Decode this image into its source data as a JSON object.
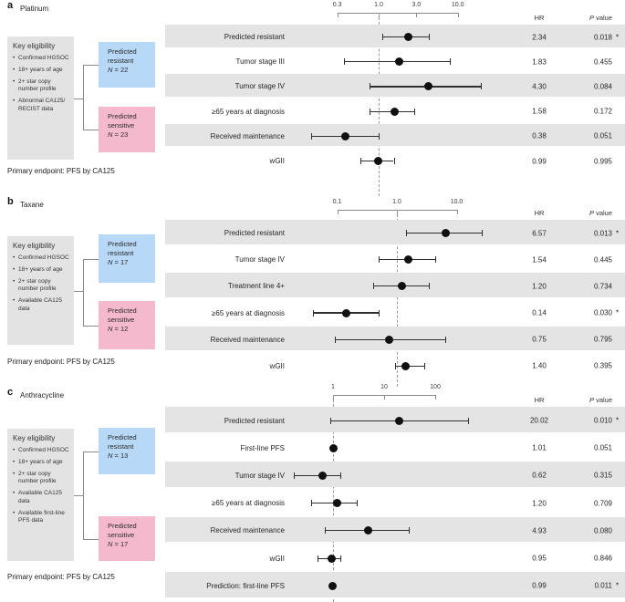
{
  "columns": {
    "hr": "HR",
    "p_italic": "P",
    "p_rest": " value"
  },
  "panels": [
    {
      "id": "a",
      "letter": "a",
      "drug": "Platinum",
      "eligibility": {
        "title": "Key eligibility",
        "items": [
          "Confirmed HGSOC",
          "18+ years of age",
          "2+ star copy number profile",
          "Abnormal CA125/ RECIST data"
        ]
      },
      "groups": [
        {
          "kind": "resistant",
          "line1": "Predicted",
          "line2": "resistant",
          "n": "N = 22"
        },
        {
          "kind": "sensitive",
          "line1": "Predicted",
          "line2": "sensitive",
          "n": "N = 23"
        }
      ],
      "endpoint": "Primary endpoint: PFS by CA125"
    },
    {
      "id": "b",
      "letter": "b",
      "drug": "Taxane",
      "eligibility": {
        "title": "Key eligibility",
        "items": [
          "Confirmed HGSOC",
          "18+ years of age",
          "2+ star copy number profile",
          "Available CA125 data"
        ]
      },
      "groups": [
        {
          "kind": "resistant",
          "line1": "Predicted",
          "line2": "resistant",
          "n": "N = 17"
        },
        {
          "kind": "sensitive",
          "line1": "Predicted",
          "line2": "sensitive",
          "n": "N = 12"
        }
      ],
      "endpoint": "Primary endpoint: PFS by CA125"
    },
    {
      "id": "c",
      "letter": "c",
      "drug": "Anthracycline",
      "eligibility": {
        "title": "Key eligibility",
        "items": [
          "Confirmed HGSOC",
          "18+ years of age",
          "2+ star copy number profile",
          "Available CA125 data",
          "Available first-line PFS data"
        ]
      },
      "groups": [
        {
          "kind": "resistant",
          "line1": "Predicted",
          "line2": "resistant",
          "n": "N = 13"
        },
        {
          "kind": "sensitive",
          "line1": "Predicted",
          "line2": "sensitive",
          "n": "N = 17"
        }
      ],
      "endpoint": "Primary endpoint: PFS by CA125"
    }
  ],
  "chart_data": [
    {
      "type": "forest",
      "panel": "a",
      "title": "Platinum",
      "scale": "log",
      "axis_ticks": [
        "0.3",
        "1.0",
        "3.0",
        "10.0"
      ],
      "axis_tick_values": [
        0.3,
        1.0,
        3.0,
        10.0
      ],
      "reference_line": 1.0,
      "hr_header": "HR",
      "p_header": "P value",
      "rows": [
        {
          "label": "Predicted resistant",
          "hr": "2.34",
          "hr_value": 2.34,
          "ci_low": 1.1,
          "ci_high": 4.3,
          "p": "0.018",
          "significant": true
        },
        {
          "label": "Tumor stage III",
          "hr": "1.83",
          "hr_value": 1.83,
          "ci_low": 0.36,
          "ci_high": 7.9,
          "p": "0.455",
          "significant": false
        },
        {
          "label": "Tumor stage IV",
          "hr": "4.30",
          "hr_value": 4.3,
          "ci_low": 0.77,
          "ci_high": 19.5,
          "p": "0.084",
          "significant": false
        },
        {
          "label": "≥65 years at diagnosis",
          "hr": "1.58",
          "hr_value": 1.58,
          "ci_low": 0.77,
          "ci_high": 2.8,
          "p": "0.172",
          "significant": false
        },
        {
          "label": "Received maintenance",
          "hr": "0.38",
          "hr_value": 0.38,
          "ci_low": 0.14,
          "ci_high": 1.0,
          "p": "0.051",
          "significant": false
        },
        {
          "label": "wGII",
          "hr": "0.99",
          "hr_value": 0.99,
          "ci_low": 0.59,
          "ci_high": 1.55,
          "p": "0.995",
          "significant": false
        }
      ]
    },
    {
      "type": "forest",
      "panel": "b",
      "title": "Taxane",
      "scale": "log",
      "axis_ticks": [
        "0.1",
        "1.0",
        "10.0"
      ],
      "axis_tick_values": [
        0.1,
        1.0,
        10.0
      ],
      "reference_line": 1.0,
      "hr_header": "HR",
      "p_header": "P value",
      "rows": [
        {
          "label": "Predicted resistant",
          "hr": "6.57",
          "hr_value": 6.57,
          "ci_low": 1.4,
          "ci_high": 26.0,
          "p": "0.013",
          "significant": true
        },
        {
          "label": "Tumor stage IV",
          "hr": "1.54",
          "hr_value": 1.54,
          "ci_low": 0.5,
          "ci_high": 4.4,
          "p": "0.445",
          "significant": false
        },
        {
          "label": "Treatment line 4+",
          "hr": "1.20",
          "hr_value": 1.2,
          "ci_low": 0.4,
          "ci_high": 3.4,
          "p": "0.734",
          "significant": false
        },
        {
          "label": "≥65 years at diagnosis",
          "hr": "0.14",
          "hr_value": 0.14,
          "ci_low": 0.04,
          "ci_high": 0.5,
          "p": "0.030",
          "significant": true
        },
        {
          "label": "Received maintenance",
          "hr": "0.75",
          "hr_value": 0.75,
          "ci_low": 0.09,
          "ci_high": 6.4,
          "p": "0.795",
          "significant": false
        },
        {
          "label": "wGII",
          "hr": "1.40",
          "hr_value": 1.4,
          "ci_low": 0.93,
          "ci_high": 2.9,
          "p": "0.395",
          "significant": false
        }
      ]
    },
    {
      "type": "forest",
      "panel": "c",
      "title": "Anthracycline",
      "scale": "log",
      "axis_ticks": [
        "1",
        "10",
        "100"
      ],
      "axis_tick_values": [
        1,
        10,
        100
      ],
      "reference_line": 1.0,
      "hr_header": "HR",
      "p_header": "P value",
      "rows": [
        {
          "label": "Predicted resistant",
          "hr": "20.02",
          "hr_value": 20.02,
          "ci_low": 0.9,
          "ci_high": 440,
          "p": "0.010",
          "significant": true
        },
        {
          "label": "First-line PFS",
          "hr": "1.01",
          "hr_value": 1.01,
          "ci_low": 0.97,
          "ci_high": 1.05,
          "p": "0.051",
          "significant": false
        },
        {
          "label": "Tumor stage IV",
          "hr": "0.62",
          "hr_value": 0.62,
          "ci_low": 0.17,
          "ci_high": 1.4,
          "p": "0.315",
          "significant": false
        },
        {
          "label": "≥65 years at diagnosis",
          "hr": "1.20",
          "hr_value": 1.2,
          "ci_low": 0.38,
          "ci_high": 2.9,
          "p": "0.709",
          "significant": false
        },
        {
          "label": "Received maintenance",
          "hr": "4.93",
          "hr_value": 4.93,
          "ci_low": 0.7,
          "ci_high": 30.0,
          "p": "0.080",
          "significant": false
        },
        {
          "label": "wGII",
          "hr": "0.95",
          "hr_value": 0.95,
          "ci_low": 0.49,
          "ci_high": 1.4,
          "p": "0.846",
          "significant": false
        },
        {
          "label": "Prediction: first-line PFS",
          "hr": "0.99",
          "hr_value": 0.99,
          "ci_low": 0.95,
          "ci_high": 1.03,
          "p": "0.011",
          "significant": true
        }
      ]
    }
  ],
  "colors": {
    "resistant_blue": "#b7d8f6",
    "sensitive_pink": "#f5b9ce",
    "stripe_gray": "#e4e4e4",
    "eligibility_gray": "#e3e3e3",
    "marker_black": "#101010"
  }
}
